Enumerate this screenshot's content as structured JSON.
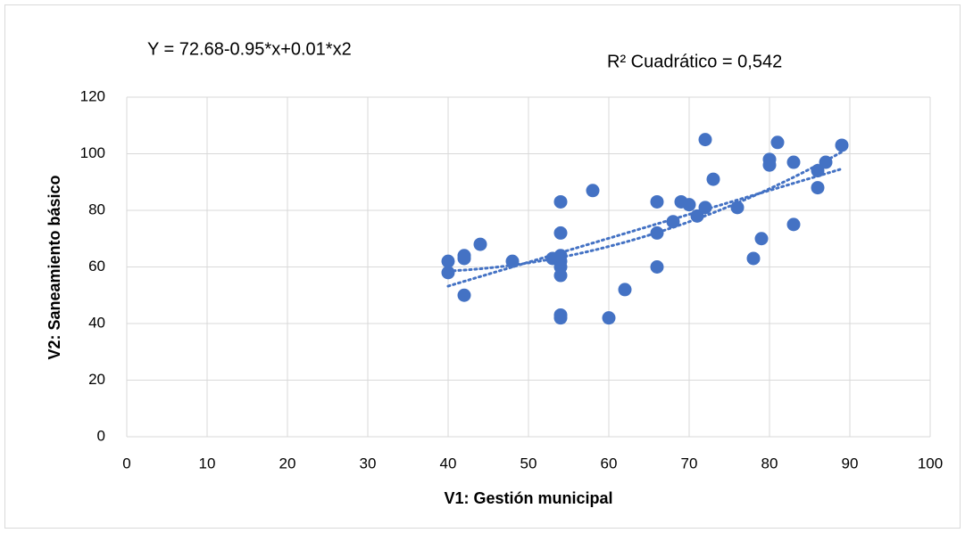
{
  "chart_data": {
    "type": "scatter",
    "equation": "Y = 72.68-0.95*x+0.01*x2",
    "r_squared_label": "R² Cuadrático = 0,542",
    "x_label": "V1: Gestión municipal",
    "y_label": "V2: Saneamiento básico",
    "color": "#4472c4",
    "grid": true,
    "xlim": [
      0,
      100
    ],
    "xticks": [
      0,
      10,
      20,
      30,
      40,
      50,
      60,
      70,
      80,
      90,
      100
    ],
    "ylim": [
      0,
      120
    ],
    "yticks": [
      0,
      20,
      40,
      60,
      80,
      100,
      120
    ],
    "x": [
      40,
      40,
      42,
      42,
      42,
      44,
      48,
      53,
      54,
      54,
      54,
      54,
      54,
      54,
      54,
      54,
      58,
      60,
      62,
      66,
      66,
      66,
      68,
      69,
      70,
      71,
      72,
      72,
      73,
      76,
      78,
      79,
      80,
      80,
      81,
      83,
      83,
      86,
      86,
      87,
      89
    ],
    "values": [
      62,
      58,
      64,
      63,
      50,
      68,
      62,
      63,
      83,
      72,
      64,
      62,
      60,
      57,
      43,
      42,
      87,
      42,
      52,
      83,
      72,
      60,
      76,
      83,
      82,
      78,
      81,
      105,
      91,
      81,
      63,
      70,
      98,
      96,
      104,
      97,
      75,
      88,
      94,
      97,
      103
    ]
  }
}
